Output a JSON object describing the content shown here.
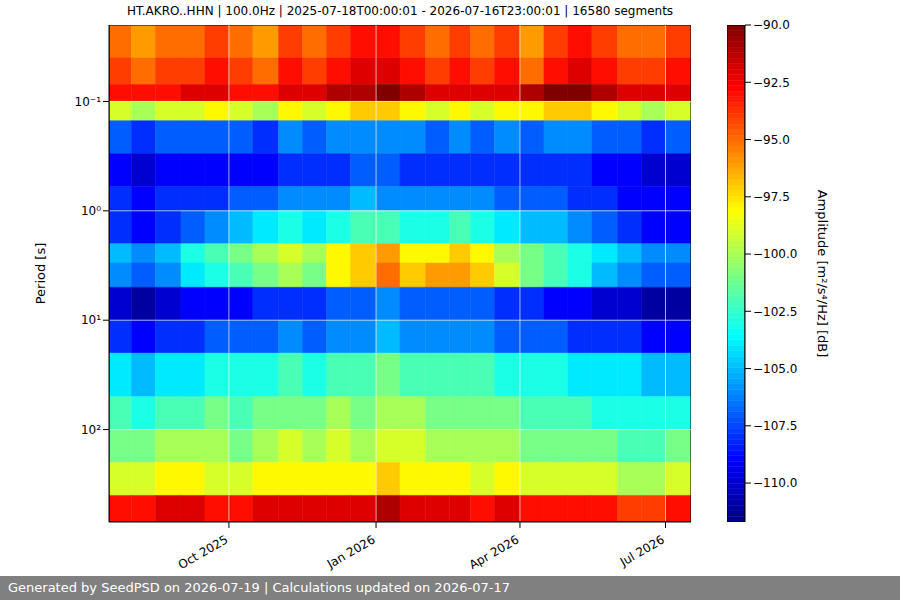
{
  "chart_data": {
    "type": "heatmap",
    "title": "HT.AKRO..HHN | 100.0Hz | 2025-07-18T00:00:01 - 2026-07-16T23:00:01 | 16580 segments",
    "footer": "Generated by SeedPSD on 2026-07-19 | Calculations updated on 2026-07-17",
    "ylabel": "Period [s]",
    "colorbar_label": "Amplitude [m²/s⁴/Hz] [dB]",
    "x": [
      "2025-07-18",
      "2025-08-01",
      "2025-08-16",
      "2025-09-01",
      "2025-09-16",
      "2025-10-01",
      "2025-10-16",
      "2025-11-01",
      "2025-11-16",
      "2025-12-01",
      "2025-12-16",
      "2026-01-01",
      "2026-01-16",
      "2026-02-01",
      "2026-02-16",
      "2026-03-01",
      "2026-03-16",
      "2026-04-01",
      "2026-04-16",
      "2026-05-01",
      "2026-05-16",
      "2026-06-01",
      "2026-06-16",
      "2026-07-01"
    ],
    "xlim": [
      "2025-07-18T00:00:01",
      "2026-07-16T23:00:01"
    ],
    "xticks": [
      {
        "value": "2025-10-01",
        "label": "Oct 2025"
      },
      {
        "value": "2026-01-01",
        "label": "Jan 2026"
      },
      {
        "value": "2026-04-01",
        "label": "Apr 2026"
      },
      {
        "value": "2026-07-01",
        "label": "Jul 2026"
      }
    ],
    "y": [
      0.02,
      0.04,
      0.07,
      0.1,
      0.15,
      0.3,
      0.6,
      1,
      2,
      3,
      5,
      10,
      20,
      50,
      100,
      200,
      400,
      700
    ],
    "ylim": [
      0.02,
      700
    ],
    "yticks": [
      {
        "value": 0.1,
        "label": "10⁻¹"
      },
      {
        "value": 1,
        "label": "10⁰"
      },
      {
        "value": 10,
        "label": "10¹"
      },
      {
        "value": 100,
        "label": "10²"
      }
    ],
    "log": "y",
    "grid": true,
    "cells": [
      [
        -95,
        -96,
        -95,
        -95,
        -94,
        -95,
        -96,
        -94,
        -95,
        -94,
        -93,
        -93,
        -94,
        -95,
        -94,
        -95,
        -94,
        -96,
        -94,
        -93,
        -94,
        -95,
        -95,
        -94
      ],
      [
        -94,
        -95,
        -94,
        -94,
        -93,
        -94,
        -95,
        -93,
        -94,
        -93,
        -92,
        -92,
        -93,
        -94,
        -93,
        -94,
        -93,
        -95,
        -93,
        -92,
        -93,
        -94,
        -94,
        -93
      ],
      [
        -93,
        -93,
        -93,
        -92,
        -92,
        -93,
        -93,
        -92,
        -92,
        -91,
        -91,
        -90,
        -91,
        -92,
        -92,
        -92,
        -92,
        -91,
        -90,
        -90,
        -91,
        -92,
        -92,
        -92
      ],
      [
        -99,
        -100,
        -99,
        -99,
        -98,
        -99,
        -100,
        -98,
        -99,
        -98,
        -97,
        -97,
        -98,
        -99,
        -98,
        -99,
        -98,
        -98,
        -97,
        -97,
        -98,
        -99,
        -100,
        -99
      ],
      [
        -107,
        -108,
        -107,
        -107,
        -107,
        -107,
        -108,
        -106,
        -107,
        -106,
        -106,
        -106,
        -106,
        -107,
        -106,
        -107,
        -106,
        -107,
        -106,
        -106,
        -107,
        -107,
        -108,
        -107
      ],
      [
        -109,
        -110,
        -109,
        -109,
        -109,
        -109,
        -109,
        -108,
        -108,
        -108,
        -107,
        -107,
        -108,
        -108,
        -108,
        -108,
        -108,
        -108,
        -108,
        -108,
        -109,
        -109,
        -110,
        -110
      ],
      [
        -108,
        -109,
        -108,
        -108,
        -108,
        -107,
        -107,
        -106,
        -106,
        -106,
        -105,
        -106,
        -106,
        -106,
        -106,
        -106,
        -107,
        -107,
        -107,
        -108,
        -108,
        -109,
        -109,
        -109
      ],
      [
        -108,
        -109,
        -108,
        -107,
        -106,
        -105,
        -104,
        -103,
        -104,
        -103,
        -102,
        -102,
        -103,
        -103,
        -102,
        -103,
        -104,
        -105,
        -105,
        -106,
        -107,
        -108,
        -109,
        -109
      ],
      [
        -105,
        -106,
        -105,
        -103,
        -102,
        -101,
        -100,
        -99,
        -100,
        -98,
        -97,
        -96,
        -98,
        -98,
        -97,
        -98,
        -100,
        -101,
        -102,
        -103,
        -104,
        -105,
        -106,
        -106
      ],
      [
        -106,
        -107,
        -106,
        -104,
        -103,
        -102,
        -101,
        -100,
        -101,
        -98,
        -97,
        -95,
        -97,
        -96,
        -96,
        -97,
        -99,
        -101,
        -102,
        -103,
        -105,
        -106,
        -107,
        -107
      ],
      [
        -110,
        -111,
        -110,
        -109,
        -109,
        -109,
        -108,
        -108,
        -108,
        -107,
        -107,
        -106,
        -107,
        -107,
        -107,
        -107,
        -108,
        -108,
        -109,
        -109,
        -110,
        -110,
        -111,
        -111
      ],
      [
        -108,
        -109,
        -108,
        -108,
        -107,
        -107,
        -107,
        -106,
        -107,
        -106,
        -106,
        -105,
        -106,
        -106,
        -106,
        -106,
        -107,
        -107,
        -107,
        -108,
        -108,
        -108,
        -109,
        -109
      ],
      [
        -104,
        -105,
        -104,
        -104,
        -103,
        -103,
        -103,
        -102,
        -103,
        -102,
        -102,
        -101,
        -102,
        -102,
        -102,
        -102,
        -103,
        -103,
        -103,
        -104,
        -104,
        -104,
        -105,
        -105
      ],
      [
        -102,
        -103,
        -102,
        -102,
        -101,
        -102,
        -101,
        -101,
        -101,
        -100,
        -101,
        -100,
        -100,
        -101,
        -101,
        -101,
        -101,
        -102,
        -102,
        -102,
        -103,
        -103,
        -103,
        -103
      ],
      [
        -101,
        -101,
        -100,
        -100,
        -100,
        -101,
        -100,
        -99,
        -100,
        -99,
        -100,
        -99,
        -99,
        -100,
        -100,
        -100,
        -100,
        -101,
        -101,
        -101,
        -101,
        -102,
        -102,
        -101
      ],
      [
        -99,
        -99,
        -98,
        -98,
        -99,
        -99,
        -98,
        -98,
        -98,
        -98,
        -98,
        -97,
        -98,
        -98,
        -98,
        -99,
        -98,
        -99,
        -99,
        -99,
        -99,
        -100,
        -100,
        -99
      ],
      [
        -93,
        -93,
        -92,
        -92,
        -93,
        -93,
        -92,
        -92,
        -92,
        -92,
        -92,
        -91,
        -92,
        -92,
        -92,
        -93,
        -92,
        -93,
        -93,
        -93,
        -93,
        -94,
        -94,
        -93
      ]
    ],
    "colorbar_range": [
      -111.7,
      -90
    ],
    "colorbar_ticks": [
      {
        "value": -90,
        "label": "−90.0"
      },
      {
        "value": -92.5,
        "label": "−92.5"
      },
      {
        "value": -95,
        "label": "−95.0"
      },
      {
        "value": -97.5,
        "label": "−97.5"
      },
      {
        "value": -100,
        "label": "−100.0"
      },
      {
        "value": -102.5,
        "label": "−102.5"
      },
      {
        "value": -105,
        "label": "−105.0"
      },
      {
        "value": -107.5,
        "label": "−107.5"
      },
      {
        "value": -110,
        "label": "−110.0"
      }
    ]
  }
}
